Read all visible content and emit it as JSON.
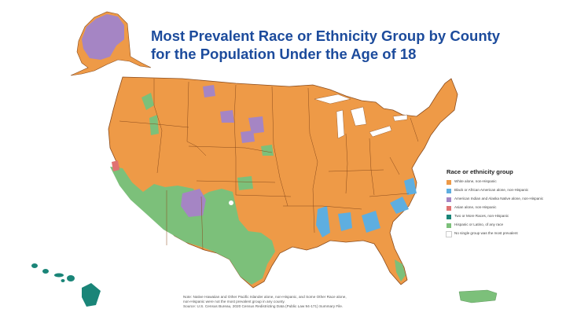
{
  "title_line1": "Most Prevalent Race or Ethnicity Group by County",
  "title_line2": "for the Population Under the Age of 18",
  "colors": {
    "white": "#ee9a47",
    "black": "#5eaee0",
    "native": "#a585c4",
    "asian": "#e07272",
    "multi": "#1a8578",
    "hispanic": "#7cc07a",
    "none": "#ffffff",
    "border": "#8a4b1c",
    "title": "#1c4b9c"
  },
  "legend": {
    "title": "Race or ethnicity group",
    "items": [
      {
        "key": "white",
        "label": "White alone, non-Hispanic",
        "color": "#ee9a47"
      },
      {
        "key": "black",
        "label": "Black or African American alone, non-Hispanic",
        "color": "#5eaee0"
      },
      {
        "key": "native",
        "label": "American Indian and Alaska Native alone, non-Hispanic",
        "color": "#a585c4"
      },
      {
        "key": "asian",
        "label": "Asian alone, non-Hispanic",
        "color": "#e07272"
      },
      {
        "key": "multi",
        "label": "Two or More Races, non-Hispanic",
        "color": "#1a8578"
      },
      {
        "key": "hispanic",
        "label": "Hispanic or Latino, of any race",
        "color": "#7cc07a"
      },
      {
        "key": "none",
        "label": "No single group was the most prevalent",
        "color": "#ffffff"
      }
    ]
  },
  "note": {
    "line1": "Note: Native Hawaiian and Other Pacific Islander alone, non-Hispanic, and Some Other Race alone,",
    "line2": "non-Hispanic were not the most prevalent group in any county.",
    "line3": "Source: U.S. Census Bureau, 2020 Census Redistricting Data (Public Law 94-171) Summary File."
  }
}
